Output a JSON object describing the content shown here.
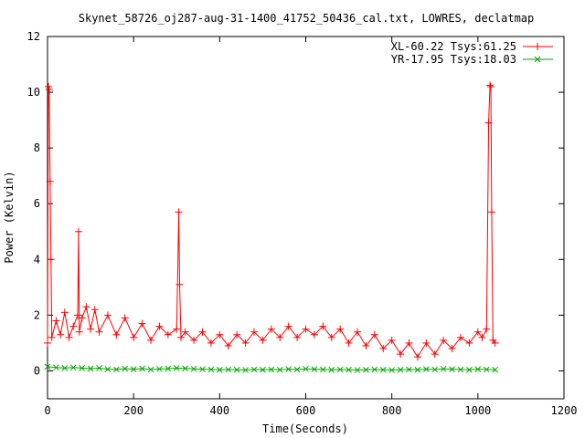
{
  "chart_data": {
    "type": "line",
    "title": "Skynet_58726_oj287-aug-31-1400_41752_50436_cal.txt, LOWRES, declatmap",
    "xlabel": "Time(Seconds)",
    "ylabel": "Power (Kelvin)",
    "xlim": [
      0,
      1200
    ],
    "ylim": [
      -1,
      12
    ],
    "xticks": [
      "0",
      "200",
      "400",
      "600",
      "800",
      "1000",
      "1200"
    ],
    "yticks": [
      "0",
      "2",
      "4",
      "6",
      "8",
      "10",
      "12"
    ],
    "grid": false,
    "legend_position": "top-right",
    "series": [
      {
        "name": "XL-60.22 Tsys:61.25",
        "color": "#ff0000",
        "marker": "plus",
        "x": [
          0,
          2,
          4,
          6,
          8,
          10,
          20,
          30,
          40,
          50,
          60,
          70,
          72,
          74,
          80,
          90,
          100,
          110,
          120,
          140,
          160,
          180,
          200,
          220,
          240,
          260,
          280,
          300,
          305,
          307,
          310,
          320,
          340,
          360,
          380,
          400,
          420,
          440,
          460,
          480,
          500,
          520,
          540,
          560,
          580,
          600,
          620,
          640,
          660,
          680,
          700,
          720,
          740,
          760,
          780,
          800,
          820,
          840,
          860,
          880,
          900,
          920,
          940,
          960,
          980,
          1000,
          1010,
          1020,
          1025,
          1028,
          1030,
          1032,
          1035,
          1040
        ],
        "y": [
          1.0,
          10.2,
          10.1,
          6.8,
          4.0,
          1.2,
          1.8,
          1.3,
          2.1,
          1.2,
          1.6,
          2.0,
          5.0,
          1.4,
          1.9,
          2.3,
          1.5,
          2.2,
          1.4,
          2.0,
          1.3,
          1.9,
          1.2,
          1.7,
          1.1,
          1.6,
          1.3,
          1.5,
          5.7,
          3.1,
          1.2,
          1.4,
          1.1,
          1.4,
          1.0,
          1.3,
          0.9,
          1.3,
          1.0,
          1.4,
          1.1,
          1.5,
          1.2,
          1.6,
          1.2,
          1.5,
          1.3,
          1.6,
          1.2,
          1.5,
          1.0,
          1.4,
          0.9,
          1.3,
          0.8,
          1.1,
          0.6,
          1.0,
          0.5,
          1.0,
          0.6,
          1.1,
          0.8,
          1.2,
          1.0,
          1.4,
          1.2,
          1.5,
          8.9,
          10.25,
          10.2,
          5.7,
          1.1,
          1.0
        ]
      },
      {
        "name": "YR-17.95 Tsys:18.03",
        "color": "#00aa00",
        "marker": "cross",
        "x": [
          0,
          20,
          40,
          60,
          80,
          100,
          120,
          140,
          160,
          180,
          200,
          220,
          240,
          260,
          280,
          300,
          320,
          340,
          360,
          380,
          400,
          420,
          440,
          460,
          480,
          500,
          520,
          540,
          560,
          580,
          600,
          620,
          640,
          660,
          680,
          700,
          720,
          740,
          760,
          780,
          800,
          820,
          840,
          860,
          880,
          900,
          920,
          940,
          960,
          980,
          1000,
          1020,
          1040
        ],
        "y": [
          0.15,
          0.12,
          0.1,
          0.12,
          0.1,
          0.08,
          0.1,
          0.06,
          0.05,
          0.08,
          0.06,
          0.08,
          0.05,
          0.07,
          0.08,
          0.1,
          0.09,
          0.07,
          0.06,
          0.05,
          0.04,
          0.05,
          0.04,
          0.03,
          0.05,
          0.04,
          0.05,
          0.04,
          0.06,
          0.05,
          0.07,
          0.06,
          0.05,
          0.04,
          0.05,
          0.04,
          0.03,
          0.04,
          0.05,
          0.04,
          0.03,
          0.04,
          0.05,
          0.04,
          0.06,
          0.05,
          0.07,
          0.06,
          0.05,
          0.04,
          0.06,
          0.05,
          0.04
        ]
      }
    ]
  }
}
